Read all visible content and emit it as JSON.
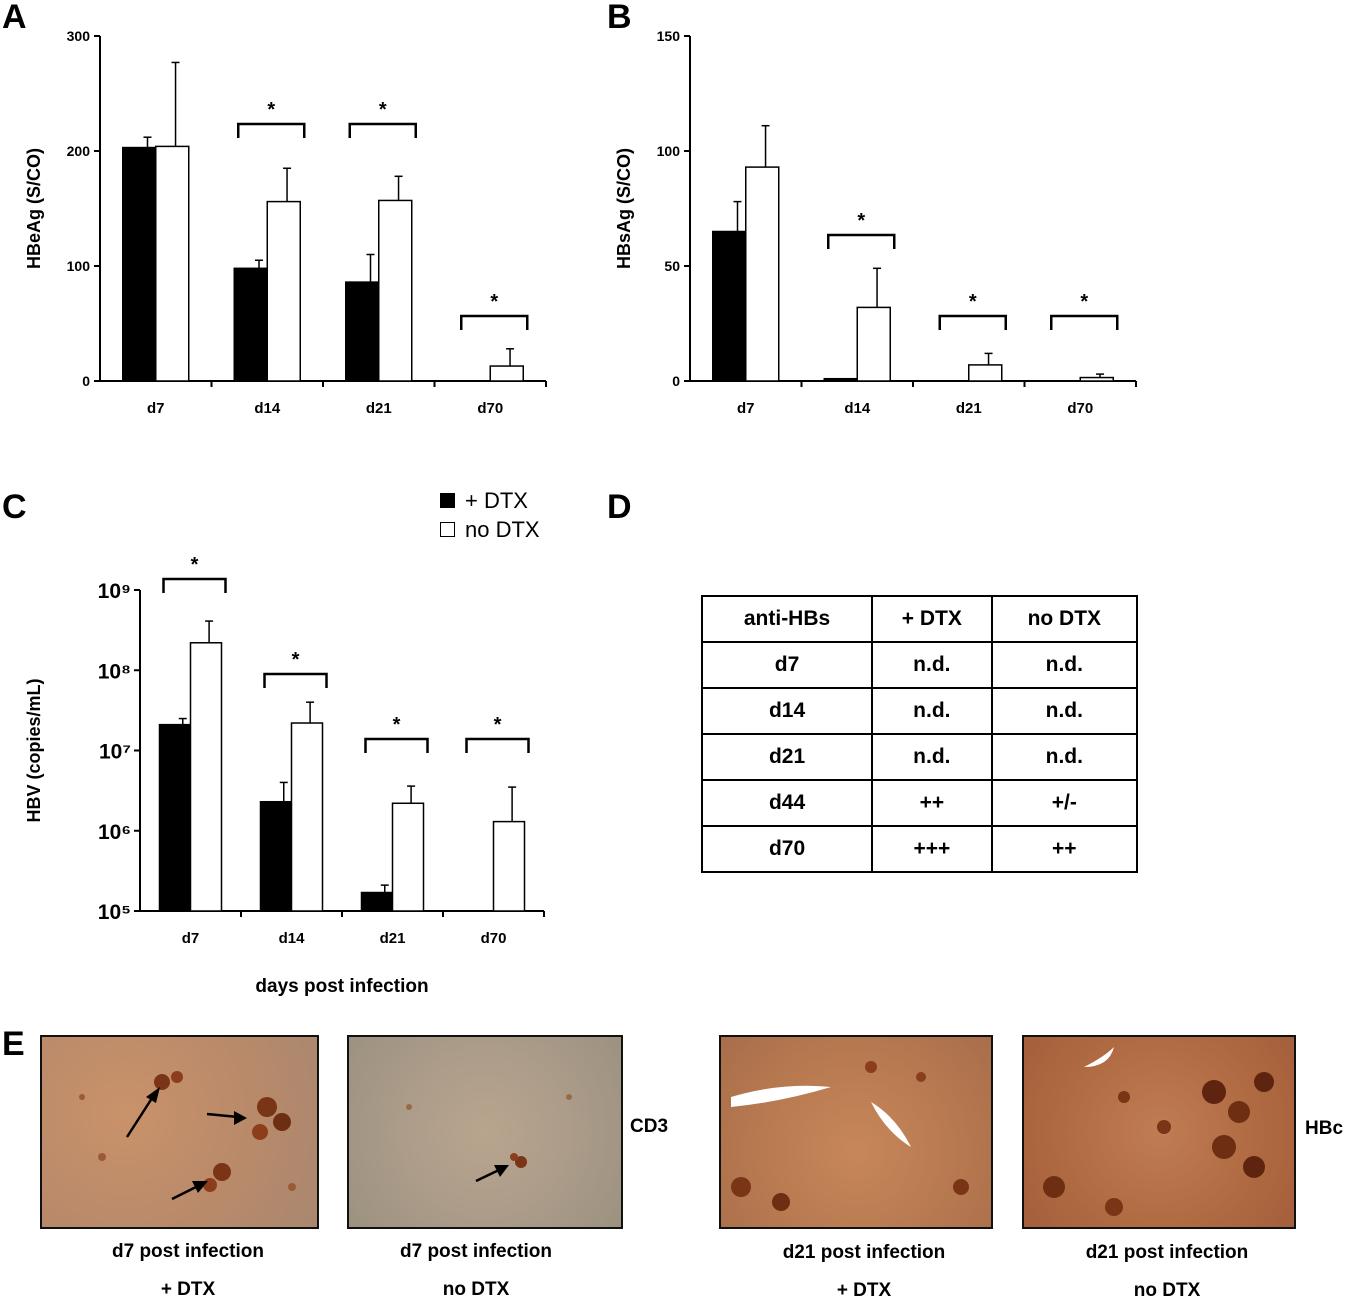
{
  "panels": {
    "A": "A",
    "B": "B",
    "C": "C",
    "D": "D",
    "E": "E"
  },
  "colors": {
    "dtx": "#000000",
    "nodtx": "#ffffff",
    "axis": "#000000"
  },
  "legend": {
    "items": [
      {
        "label": "+ DTX",
        "color": "#000000"
      },
      {
        "label": "no DTX",
        "color": "#ffffff"
      }
    ]
  },
  "chart_data": [
    {
      "id": "A",
      "type": "bar",
      "categories": [
        "d7",
        "d14",
        "d21",
        "d70"
      ],
      "ylabel": "HBeAg (S/CO)",
      "ylim": [
        0,
        300
      ],
      "yticks": [
        0,
        100,
        200,
        300
      ],
      "series": [
        {
          "name": "+ DTX",
          "values": [
            203,
            98,
            86,
            0
          ],
          "errors": [
            9,
            7,
            24,
            0
          ]
        },
        {
          "name": "no DTX",
          "values": [
            204,
            156,
            157,
            13
          ],
          "errors": [
            73,
            29,
            21,
            15
          ]
        }
      ],
      "significance": [
        "",
        "*",
        "*",
        "*"
      ]
    },
    {
      "id": "B",
      "type": "bar",
      "categories": [
        "d7",
        "d14",
        "d21",
        "d70"
      ],
      "ylabel": "HBsAg (S/CO)",
      "ylim": [
        0,
        150
      ],
      "yticks": [
        0,
        50,
        100,
        150
      ],
      "series": [
        {
          "name": "+ DTX",
          "values": [
            65,
            1,
            0,
            0
          ],
          "errors": [
            13,
            0,
            0,
            0
          ]
        },
        {
          "name": "no DTX",
          "values": [
            93,
            32,
            7,
            1.5
          ],
          "errors": [
            18,
            17,
            5,
            1.5
          ]
        }
      ],
      "significance": [
        "",
        "*",
        "*",
        "*"
      ]
    },
    {
      "id": "C",
      "type": "bar",
      "yscale": "log",
      "categories": [
        "d7",
        "d14",
        "d21",
        "d70"
      ],
      "xlabel": "days post infection",
      "ylabel": "HBV (copies/mL)",
      "ylim": [
        100000,
        1000000000
      ],
      "ytick_exponents": [
        5,
        6,
        7,
        8,
        9
      ],
      "series": [
        {
          "name": "+ DTX",
          "values": [
            21000000,
            2300000,
            170000,
            0
          ],
          "errors": [
            25000000,
            4000000,
            210000,
            0
          ]
        },
        {
          "name": "no DTX",
          "values": [
            220000000,
            22000000,
            2200000,
            1300000
          ],
          "errors": [
            410000000,
            40000000,
            3600000,
            3500000
          ]
        }
      ],
      "significance": [
        "*",
        "*",
        "*",
        "*"
      ]
    }
  ],
  "table": {
    "headers": [
      "anti-HBs",
      "+ DTX",
      "no DTX"
    ],
    "rows": [
      [
        "d7",
        "n.d.",
        "n.d."
      ],
      [
        "d14",
        "n.d.",
        "n.d."
      ],
      [
        "d21",
        "n.d.",
        "n.d."
      ],
      [
        "d44",
        "++",
        "+/-"
      ],
      [
        "d70",
        "+++",
        "++"
      ]
    ]
  },
  "histology": {
    "stains": [
      "CD3",
      "HBc"
    ],
    "images": [
      {
        "line1": "d7 post infection",
        "line2": "+ DTX"
      },
      {
        "line1": "d7 post infection",
        "line2": "no DTX"
      },
      {
        "line1": "d21 post infection",
        "line2": "+ DTX"
      },
      {
        "line1": "d21 post infection",
        "line2": "no DTX"
      }
    ]
  }
}
